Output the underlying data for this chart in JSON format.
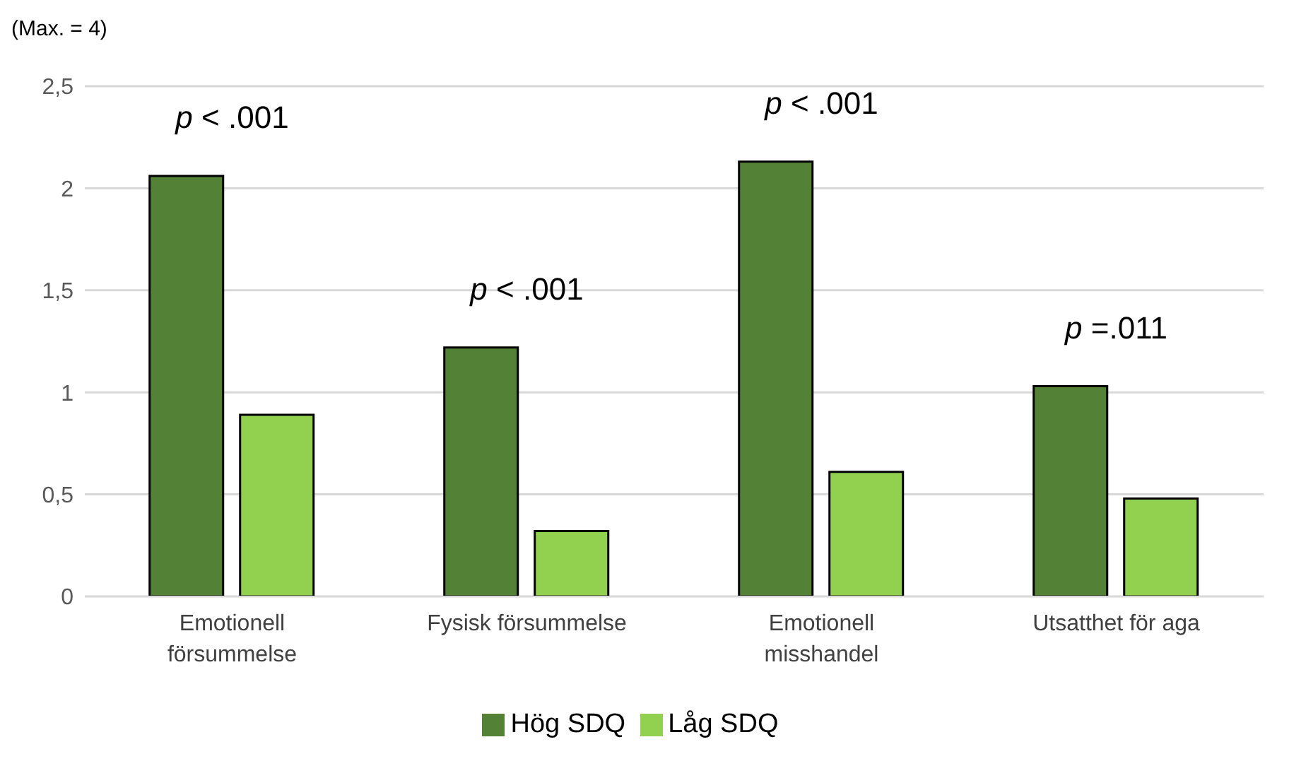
{
  "chart_data": {
    "type": "bar",
    "ylabel": "(Max. = 4)",
    "categories": [
      "Emotionell försummelse",
      "Fysisk försummelse",
      "Emotionell misshandel",
      "Utsatthet för aga"
    ],
    "series": [
      {
        "name": "Hög SDQ",
        "color": "#538135",
        "values": [
          2.06,
          1.22,
          2.13,
          1.03
        ]
      },
      {
        "name": "Låg SDQ",
        "color": "#92d050",
        "values": [
          0.89,
          0.32,
          0.61,
          0.48
        ]
      }
    ],
    "ylim": [
      0,
      2.5
    ],
    "yticks": [
      0,
      {
        "value": 0.5,
        "label": "0,5"
      },
      1,
      {
        "value": 1.5,
        "label": "1,5"
      },
      2,
      {
        "value": 2.5,
        "label": "2,5"
      }
    ],
    "grid": "y",
    "legend": "bottom",
    "annotations": [
      "p < .001",
      "p < .001",
      "p < .001",
      "p =.011"
    ]
  }
}
